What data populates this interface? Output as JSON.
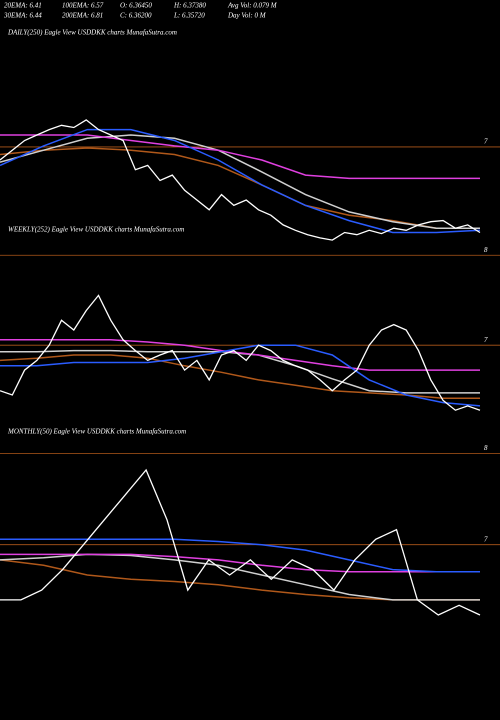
{
  "header": [
    "20EMA: 6.41",
    "100EMA: 6.57",
    "O: 6.36450",
    "H: 6.37380",
    "Avg Vol: 0.079 M",
    "30EMA: 6.44",
    "200EMA: 6.81",
    "C: 6.36200",
    "L: 6.35720",
    "Day Vol: 0 M"
  ],
  "chart_data": [
    {
      "type": "line",
      "title": "DAILY(250) Eagle  View  USDDKK charts MunafaSutra.com",
      "ylim": [
        8.09,
        5.92
      ],
      "yticks": [
        7,
        8
      ],
      "grid": true,
      "series": [
        {
          "color": "#b0581a",
          "values": [
            7.07,
            7.03,
            7.01,
            7.03,
            7.07,
            7.17,
            7.35,
            7.54,
            7.63,
            7.68,
            7.75,
            7.75
          ]
        },
        {
          "color": "#d0d0d0",
          "values": [
            7.14,
            7.03,
            6.92,
            6.89,
            6.92,
            7.03,
            7.23,
            7.44,
            7.6,
            7.69,
            7.75,
            7.75
          ]
        },
        {
          "color": "#e040e0",
          "values": [
            6.89,
            6.89,
            6.89,
            6.94,
            6.99,
            7.03,
            7.12,
            7.26,
            7.29,
            7.29,
            7.29,
            7.29
          ]
        },
        {
          "color": "#2a5cff",
          "values": [
            7.17,
            6.99,
            6.84,
            6.84,
            6.94,
            7.12,
            7.35,
            7.54,
            7.68,
            7.79,
            7.79,
            7.77
          ]
        },
        {
          "color": "#ffffff",
          "values": [
            7.12,
            7.03,
            6.94,
            6.89,
            6.84,
            6.8,
            6.82,
            6.75,
            6.84,
            6.89,
            6.94,
            7.21,
            7.17,
            7.31,
            7.26,
            7.4,
            7.49,
            7.58,
            7.44,
            7.54,
            7.49,
            7.58,
            7.63,
            7.72,
            7.77,
            7.81,
            7.84,
            7.86,
            7.79,
            7.81,
            7.77,
            7.8,
            7.75,
            7.77,
            7.72,
            7.69,
            7.68,
            7.75,
            7.72,
            7.79
          ]
        }
      ]
    },
    {
      "type": "line",
      "title": "WEEKLY(252) Eagle  View  USDDKK charts MunafaSutra.com",
      "ylim": [
        8.06,
        5.89
      ],
      "yticks": [
        7,
        8
      ],
      "grid": true,
      "series": [
        {
          "color": "#b0581a",
          "values": [
            7.14,
            7.12,
            7.09,
            7.09,
            7.12,
            7.19,
            7.25,
            7.32,
            7.37,
            7.42,
            7.44,
            7.46,
            7.49,
            7.49
          ]
        },
        {
          "color": "#d0d0d0",
          "values": [
            7.06,
            7.06,
            7.05,
            7.05,
            7.06,
            7.06,
            7.06,
            7.09,
            7.19,
            7.31,
            7.42,
            7.44,
            7.44,
            7.44
          ]
        },
        {
          "color": "#e040e0",
          "values": [
            6.95,
            6.95,
            6.95,
            6.95,
            6.97,
            7.0,
            7.05,
            7.09,
            7.14,
            7.19,
            7.23,
            7.23,
            7.23,
            7.23
          ]
        },
        {
          "color": "#2a5cff",
          "values": [
            7.19,
            7.19,
            7.16,
            7.16,
            7.16,
            7.12,
            7.06,
            7.0,
            7.0,
            7.09,
            7.32,
            7.46,
            7.53,
            7.56
          ]
        },
        {
          "color": "#ffffff",
          "values": [
            7.42,
            7.46,
            7.23,
            7.14,
            7.0,
            6.77,
            6.86,
            6.68,
            6.54,
            6.77,
            6.95,
            7.05,
            7.14,
            7.09,
            7.05,
            7.23,
            7.14,
            7.32,
            7.09,
            7.05,
            7.14,
            7.0,
            7.05,
            7.14,
            7.19,
            7.23,
            7.32,
            7.42,
            7.32,
            7.23,
            7.0,
            6.86,
            6.81,
            6.86,
            7.05,
            7.32,
            7.51,
            7.6,
            7.56,
            7.6
          ]
        }
      ]
    },
    {
      "type": "line",
      "title": "MONTHLY(50) Eagle  View  USDDKK charts MunafaSutra.com",
      "ylim": [
        8.62,
        5.94
      ],
      "yticks": [
        7
      ],
      "grid": true,
      "series": [
        {
          "color": "#b0581a",
          "values": [
            7.14,
            7.19,
            7.28,
            7.32,
            7.34,
            7.37,
            7.42,
            7.46,
            7.49,
            7.51,
            7.51,
            7.51
          ]
        },
        {
          "color": "#d0d0d0",
          "values": [
            7.14,
            7.12,
            7.09,
            7.1,
            7.14,
            7.19,
            7.28,
            7.37,
            7.46,
            7.51,
            7.51,
            7.51
          ]
        },
        {
          "color": "#e040e0",
          "values": [
            7.09,
            7.09,
            7.09,
            7.09,
            7.11,
            7.14,
            7.19,
            7.23,
            7.25,
            7.25,
            7.25,
            7.25
          ]
        },
        {
          "color": "#2a5cff",
          "values": [
            6.95,
            6.95,
            6.95,
            6.95,
            6.95,
            6.97,
            7.0,
            7.05,
            7.14,
            7.23,
            7.25,
            7.25
          ]
        },
        {
          "color": "#ffffff",
          "values": [
            7.51,
            7.51,
            7.42,
            7.23,
            7.0,
            6.77,
            6.54,
            6.31,
            6.77,
            7.42,
            7.14,
            7.28,
            7.14,
            7.32,
            7.14,
            7.23,
            7.42,
            7.14,
            6.95,
            6.86,
            7.51,
            7.65,
            7.56,
            7.65
          ]
        }
      ]
    }
  ]
}
